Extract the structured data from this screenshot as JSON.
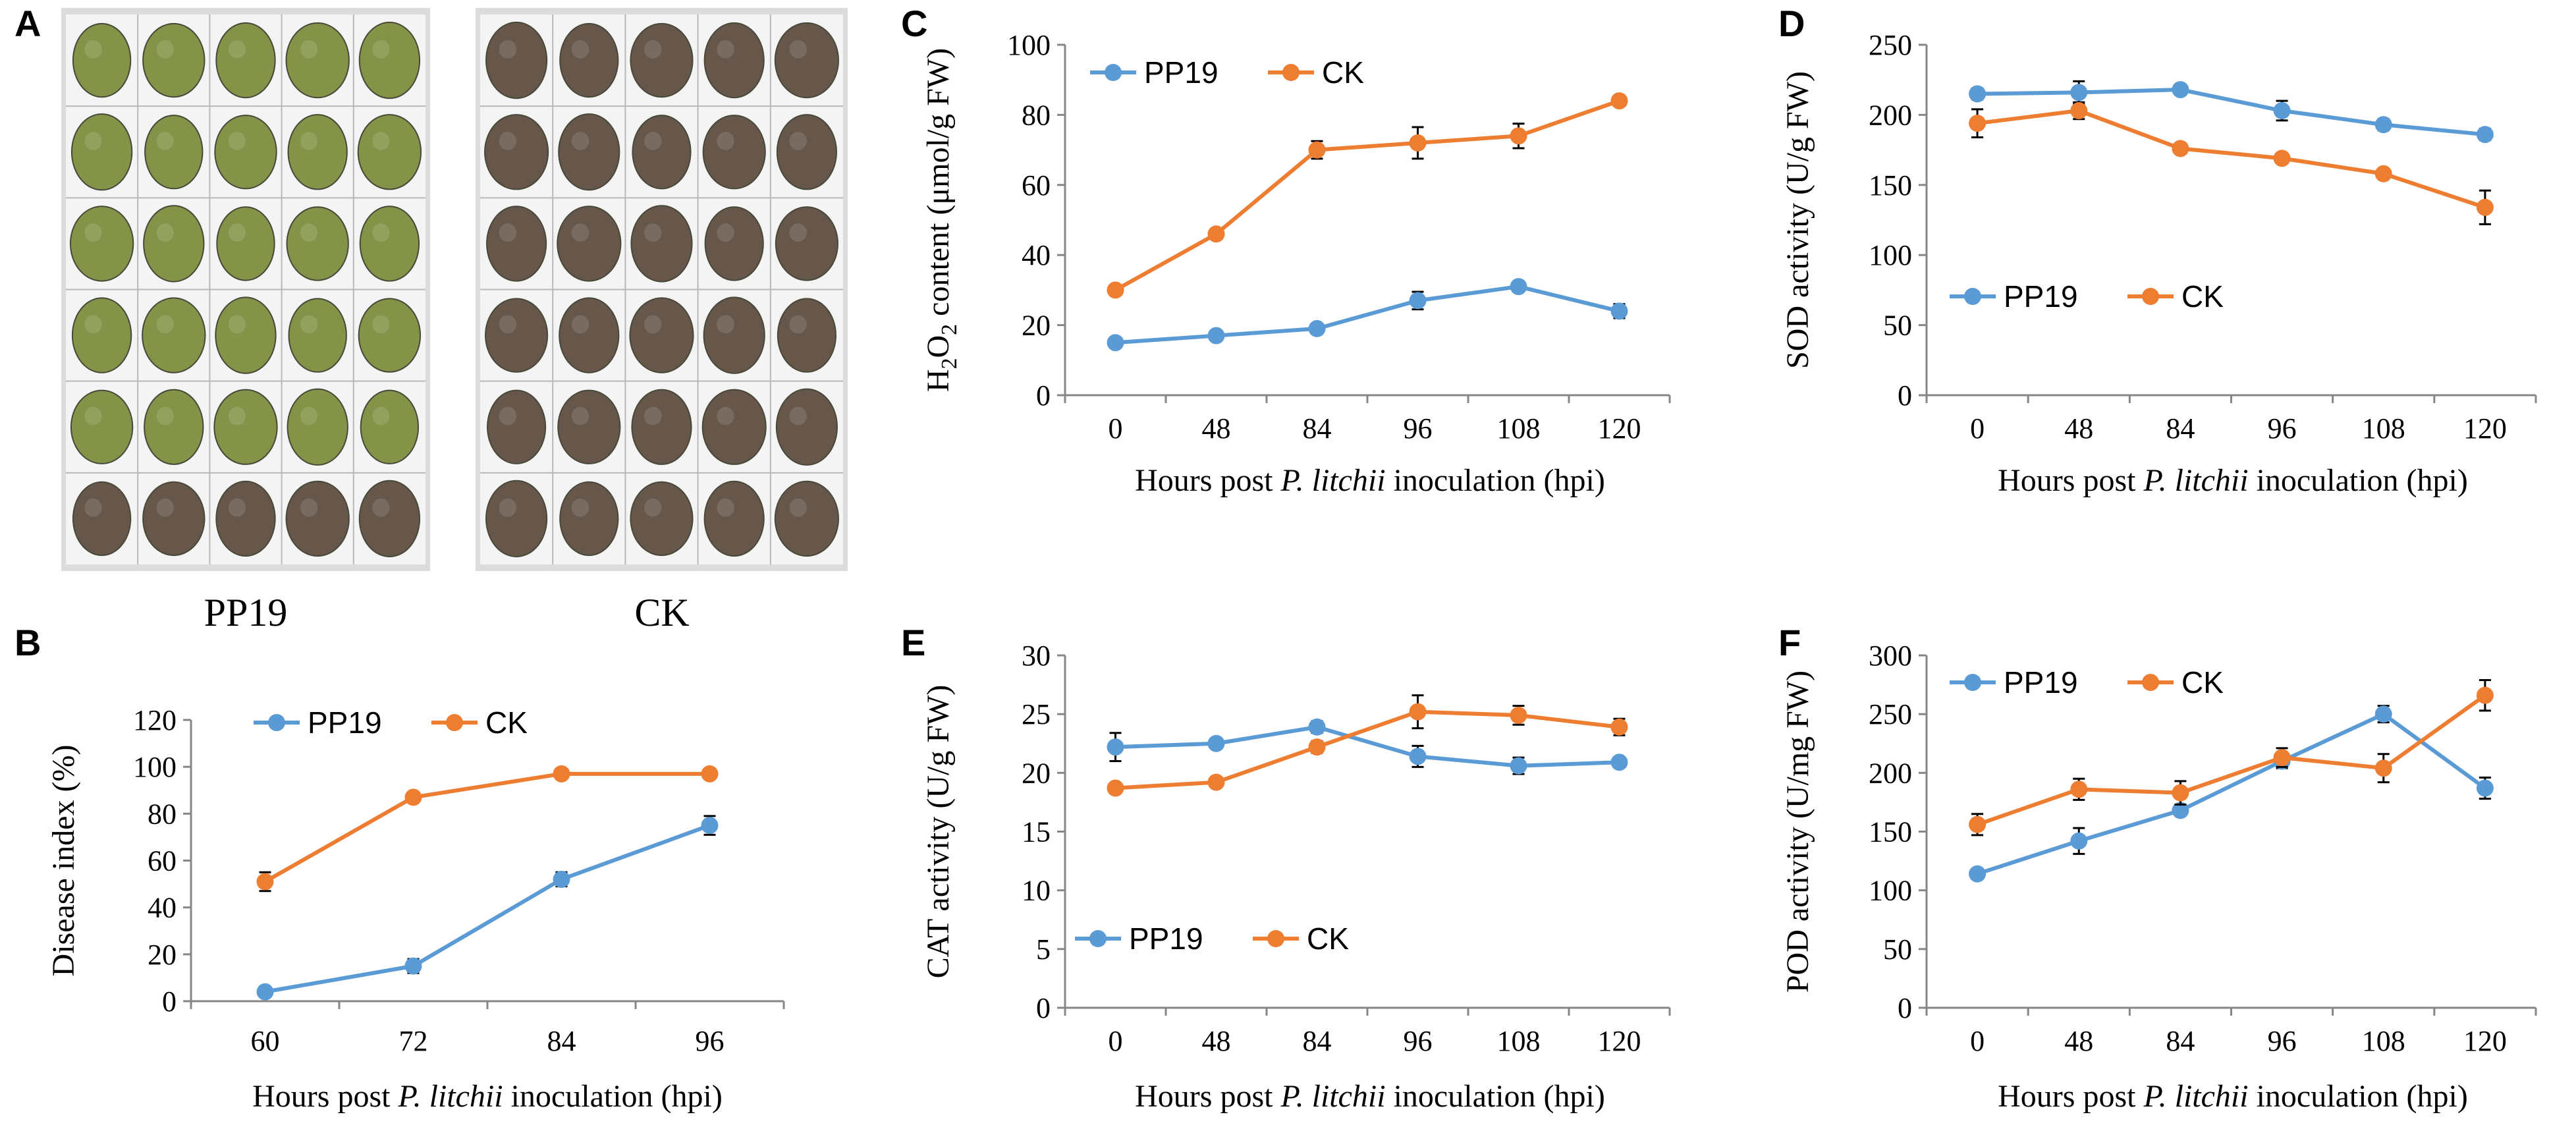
{
  "colors": {
    "PP19": "#5b9bd5",
    "CK": "#ed7d31",
    "photo_background": "#dcdcdc",
    "photo_paper": "#f4f4f4",
    "fruit_PP19": "#7a8c3a",
    "fruit_CK": "#5a4a3c"
  },
  "photo_panel": {
    "letter": "A",
    "labels": [
      "PP19",
      "CK"
    ],
    "rows": 6,
    "cols": 5
  },
  "x_axis_prefix": "Hours post ",
  "x_axis_species": "P. litchii",
  "x_axis_suffix_default": " inoculation (hpi)",
  "chart_data": [
    {
      "panel": "B",
      "type": "line",
      "title": "",
      "categories": [
        "60",
        "72",
        "84",
        "96"
      ],
      "ylabel": "Disease index (%)",
      "xlabel_suffix": " inoculation  (hpi)",
      "ylim": [
        0,
        120
      ],
      "yticks": [
        0,
        20,
        40,
        60,
        80,
        100,
        120
      ],
      "legend_position": "top",
      "series": [
        {
          "name": "PP19",
          "values": [
            4,
            15,
            52,
            75
          ],
          "errors": [
            2,
            3,
            3,
            4
          ]
        },
        {
          "name": "CK",
          "values": [
            51,
            87,
            97,
            97
          ],
          "errors": [
            4,
            2,
            1,
            1
          ]
        }
      ]
    },
    {
      "panel": "C",
      "type": "line",
      "title": "",
      "categories": [
        "0",
        "48",
        "84",
        "96",
        "108",
        "120"
      ],
      "ylabel": "content (μmol/g  FW)",
      "ylabel_prefix": "H",
      "ylabel_sub1": "2",
      "ylabel_mid": "O",
      "ylabel_sub2": "2",
      "xlabel_suffix": " inoculation (hpi)",
      "ylim": [
        0,
        100
      ],
      "yticks": [
        0,
        20,
        40,
        60,
        80,
        100
      ],
      "legend_position": "top-left",
      "series": [
        {
          "name": "PP19",
          "values": [
            15,
            17,
            19,
            27,
            31,
            24
          ],
          "errors": [
            1,
            1,
            1,
            2.5,
            1.5,
            2
          ]
        },
        {
          "name": "CK",
          "values": [
            30,
            46,
            70,
            72,
            74,
            84
          ],
          "errors": [
            1,
            1,
            2.5,
            4.5,
            3.5,
            1.5
          ]
        }
      ]
    },
    {
      "panel": "D",
      "type": "line",
      "title": "",
      "categories": [
        "0",
        "48",
        "84",
        "96",
        "108",
        "120"
      ],
      "ylabel": "SOD activity (U/g FW)",
      "xlabel_suffix": " inoculation (hpi)",
      "ylim": [
        0,
        250
      ],
      "yticks": [
        0,
        50,
        100,
        150,
        200,
        250
      ],
      "legend_position": "bottom-left",
      "series": [
        {
          "name": "PP19",
          "values": [
            215,
            216,
            218,
            203,
            193,
            186
          ],
          "errors": [
            4,
            8,
            3,
            7,
            4,
            4
          ]
        },
        {
          "name": "CK",
          "values": [
            194,
            203,
            176,
            169,
            158,
            134
          ],
          "errors": [
            10,
            6,
            3,
            3,
            3,
            12
          ]
        }
      ]
    },
    {
      "panel": "E",
      "type": "line",
      "title": "",
      "categories": [
        "0",
        "48",
        "84",
        "96",
        "108",
        "120"
      ],
      "ylabel": "CAT activity (U/g FW)",
      "xlabel_suffix": " inoculation (hpi)",
      "ylim": [
        0,
        30
      ],
      "yticks": [
        0,
        5,
        10,
        15,
        20,
        25,
        30
      ],
      "legend_position": "bottom-left",
      "series": [
        {
          "name": "PP19",
          "values": [
            22.2,
            22.5,
            23.9,
            21.4,
            20.6,
            20.9
          ],
          "errors": [
            1.2,
            0.4,
            0.5,
            0.9,
            0.7,
            0.3
          ]
        },
        {
          "name": "CK",
          "values": [
            18.7,
            19.2,
            22.2,
            25.2,
            24.9,
            23.9
          ],
          "errors": [
            0.3,
            0.3,
            0.5,
            1.4,
            0.8,
            0.7
          ]
        }
      ]
    },
    {
      "panel": "F",
      "type": "line",
      "title": "",
      "categories": [
        "0",
        "48",
        "84",
        "96",
        "108",
        "120"
      ],
      "ylabel": "POD  activity  (U/mg FW)",
      "xlabel_suffix": " inoculation (hpi)",
      "ylim": [
        0,
        300
      ],
      "yticks": [
        0,
        50,
        100,
        150,
        200,
        250,
        300
      ],
      "legend_position": "top-left",
      "series": [
        {
          "name": "PP19",
          "values": [
            114,
            142,
            168,
            210,
            250,
            187
          ],
          "errors": [
            3,
            11,
            4,
            6,
            7,
            9
          ]
        },
        {
          "name": "CK",
          "values": [
            156,
            186,
            183,
            213,
            204,
            266
          ],
          "errors": [
            9,
            9,
            10,
            8,
            12,
            13
          ]
        }
      ]
    }
  ]
}
